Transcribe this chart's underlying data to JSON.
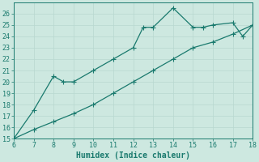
{
  "line1_x": [
    6,
    7,
    8,
    8.5,
    9,
    10,
    11,
    12,
    12.5,
    13,
    14,
    15,
    15.5,
    16,
    17,
    17.5,
    18
  ],
  "line1_y": [
    15,
    17.5,
    20.5,
    20.0,
    20.0,
    21.0,
    22.0,
    23.0,
    24.8,
    24.8,
    26.5,
    24.8,
    24.8,
    25.0,
    25.2,
    24.0,
    25.0
  ],
  "line2_x": [
    6,
    7,
    8,
    9,
    10,
    11,
    12,
    13,
    14,
    15,
    16,
    17,
    18
  ],
  "line2_y": [
    15.0,
    15.8,
    16.5,
    17.2,
    18.0,
    19.0,
    20.0,
    21.0,
    22.0,
    23.0,
    23.5,
    24.2,
    25.0
  ],
  "line_color": "#1a7a6e",
  "bg_color": "#cde8e0",
  "grid_major_color": "#b8d8d0",
  "grid_minor_color": "#c8e0d8",
  "xlabel": "Humidex (Indice chaleur)",
  "xlim": [
    6,
    18
  ],
  "ylim": [
    15,
    27
  ],
  "xticks": [
    6,
    7,
    8,
    9,
    10,
    11,
    12,
    13,
    14,
    15,
    16,
    17,
    18
  ],
  "yticks": [
    15,
    16,
    17,
    18,
    19,
    20,
    21,
    22,
    23,
    24,
    25,
    26
  ],
  "tick_fontsize": 6,
  "xlabel_fontsize": 7,
  "marker_size": 2.5,
  "line_width": 0.9
}
